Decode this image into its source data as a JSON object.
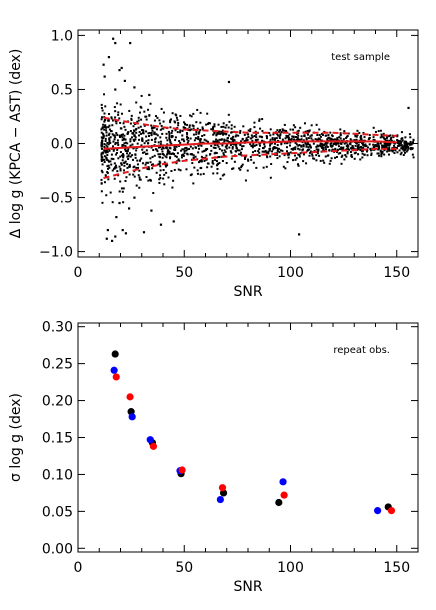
{
  "chart_data": [
    {
      "type": "scatter",
      "annotation": "test sample",
      "xlabel": "SNR",
      "ylabel": "Δ log g (KPCA − AST) (dex)",
      "xlim": [
        0,
        160
      ],
      "ylim": [
        -1.05,
        1.05
      ],
      "xticks": [
        0,
        50,
        100,
        150
      ],
      "xtick_labels": [
        "0",
        "50",
        "100",
        "150"
      ],
      "yticks": [
        -1.0,
        -0.5,
        0.0,
        0.5,
        1.0
      ],
      "ytick_labels": [
        "−1.0",
        "−0.5",
        "0.0",
        "0.5",
        "1.0"
      ],
      "point_color": "#000000",
      "trend_color": "#e31a1c",
      "noted_points": [
        [
          16.5,
          0.97
        ],
        [
          17.5,
          0.93
        ],
        [
          24.5,
          0.93
        ],
        [
          14.5,
          0.8
        ],
        [
          12.0,
          0.73
        ],
        [
          19.5,
          0.68
        ],
        [
          20.5,
          0.7
        ],
        [
          12.5,
          0.62
        ],
        [
          22.0,
          0.58
        ],
        [
          71.0,
          0.57
        ],
        [
          17.5,
          0.5
        ],
        [
          26.5,
          0.52
        ],
        [
          33.5,
          0.45
        ],
        [
          155.5,
          0.33
        ],
        [
          14.0,
          -0.8
        ],
        [
          13.5,
          -0.88
        ],
        [
          16.0,
          -0.9
        ],
        [
          17.5,
          -0.86
        ],
        [
          22.5,
          -0.83
        ],
        [
          21.0,
          -0.8
        ],
        [
          31.0,
          -0.82
        ],
        [
          39.0,
          -0.75
        ],
        [
          45.0,
          -0.72
        ],
        [
          104.0,
          -0.84
        ],
        [
          18.0,
          -0.68
        ],
        [
          24.0,
          -0.6
        ],
        [
          34.5,
          -0.62
        ],
        [
          19.5,
          -0.55
        ],
        [
          26.5,
          -0.5
        ]
      ],
      "cloud": {
        "n": 1650,
        "snr_range": [
          11,
          158
        ],
        "spread_at_snr_15": 0.22,
        "spread_at_snr_150": 0.055
      },
      "trend_lines": {
        "x": [
          12,
          20,
          30,
          40,
          50,
          60,
          70,
          80,
          90,
          100,
          110,
          120,
          130,
          140,
          150
        ],
        "median": [
          -0.05,
          -0.04,
          -0.03,
          -0.02,
          -0.01,
          0.0,
          0.0,
          0.01,
          0.01,
          0.02,
          0.02,
          0.02,
          0.02,
          0.02,
          0.01
        ],
        "upper": [
          0.24,
          0.21,
          0.18,
          0.15,
          0.13,
          0.12,
          0.11,
          0.1,
          0.1,
          0.1,
          0.1,
          0.1,
          0.09,
          0.08,
          0.07
        ],
        "lower": [
          -0.32,
          -0.28,
          -0.23,
          -0.19,
          -0.16,
          -0.14,
          -0.12,
          -0.11,
          -0.1,
          -0.09,
          -0.08,
          -0.07,
          -0.06,
          -0.05,
          -0.05
        ]
      }
    },
    {
      "type": "scatter",
      "annotation": "repeat obs.",
      "xlabel": "SNR",
      "ylabel": "σ log g (dex)",
      "xlim": [
        0,
        160
      ],
      "ylim": [
        -0.005,
        0.305
      ],
      "xticks": [
        0,
        50,
        100,
        150
      ],
      "xtick_labels": [
        "0",
        "50",
        "100",
        "150"
      ],
      "yticks": [
        0.0,
        0.05,
        0.1,
        0.15,
        0.2,
        0.25,
        0.3
      ],
      "ytick_labels": [
        "0.00",
        "0.05",
        "0.10",
        "0.15",
        "0.20",
        "0.25",
        "0.30"
      ],
      "series": [
        {
          "color": "#000000",
          "points": [
            [
              17.5,
              0.263
            ],
            [
              25.0,
              0.185
            ],
            [
              35.0,
              0.143
            ],
            [
              48.5,
              0.101
            ],
            [
              68.5,
              0.075
            ],
            [
              94.5,
              0.062
            ],
            [
              146.0,
              0.056
            ]
          ]
        },
        {
          "color": "#0000ff",
          "points": [
            [
              17.0,
              0.241
            ],
            [
              25.5,
              0.178
            ],
            [
              34.0,
              0.147
            ],
            [
              48.0,
              0.105
            ],
            [
              67.0,
              0.066
            ],
            [
              96.5,
              0.09
            ],
            [
              141.0,
              0.051
            ]
          ]
        },
        {
          "color": "#ff0000",
          "points": [
            [
              18.0,
              0.232
            ],
            [
              24.5,
              0.205
            ],
            [
              35.5,
              0.138
            ],
            [
              49.0,
              0.106
            ],
            [
              68.0,
              0.082
            ],
            [
              97.0,
              0.072
            ],
            [
              147.5,
              0.051
            ]
          ]
        }
      ]
    }
  ]
}
